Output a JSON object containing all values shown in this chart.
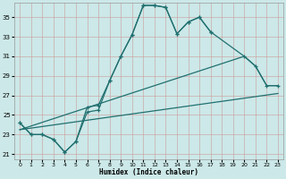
{
  "xlabel": "Humidex (Indice chaleur)",
  "bg_color": "#cce8e8",
  "grid_color": "#b5cccc",
  "line_color": "#217070",
  "xlim": [
    -0.5,
    23.5
  ],
  "ylim": [
    20.5,
    36.5
  ],
  "yticks": [
    21,
    23,
    25,
    27,
    29,
    31,
    33,
    35
  ],
  "xticks": [
    0,
    1,
    2,
    3,
    4,
    5,
    6,
    7,
    8,
    9,
    10,
    11,
    12,
    13,
    14,
    15,
    16,
    17,
    18,
    19,
    20,
    21,
    22,
    23
  ],
  "curve1_x": [
    0,
    1,
    2,
    3,
    4,
    5,
    6,
    7,
    8,
    9,
    10,
    11,
    12,
    13,
    14,
    15,
    16,
    17
  ],
  "curve1_y": [
    24.2,
    23.0,
    23.0,
    22.5,
    21.2,
    22.3,
    25.8,
    26.0,
    28.5,
    31.0,
    33.2,
    36.2,
    36.2,
    36.0,
    33.3,
    34.5,
    35.0,
    33.5
  ],
  "curve2_x": [
    0,
    1,
    2,
    3,
    4,
    5,
    6,
    7,
    8,
    9,
    10,
    11,
    12,
    13,
    14,
    15,
    16,
    17,
    20,
    21,
    22,
    23
  ],
  "curve2_y": [
    24.2,
    23.0,
    23.0,
    22.5,
    21.2,
    22.3,
    25.3,
    25.5,
    28.5,
    31.0,
    33.2,
    36.2,
    36.2,
    36.0,
    33.3,
    34.5,
    35.0,
    33.5,
    31.0,
    30.0,
    28.0,
    28.0
  ],
  "line1_x": [
    0,
    20,
    21,
    22,
    23
  ],
  "line1_y": [
    23.5,
    31.0,
    30.0,
    28.0,
    28.0
  ],
  "line2_x": [
    0,
    23
  ],
  "line2_y": [
    23.5,
    27.2
  ]
}
